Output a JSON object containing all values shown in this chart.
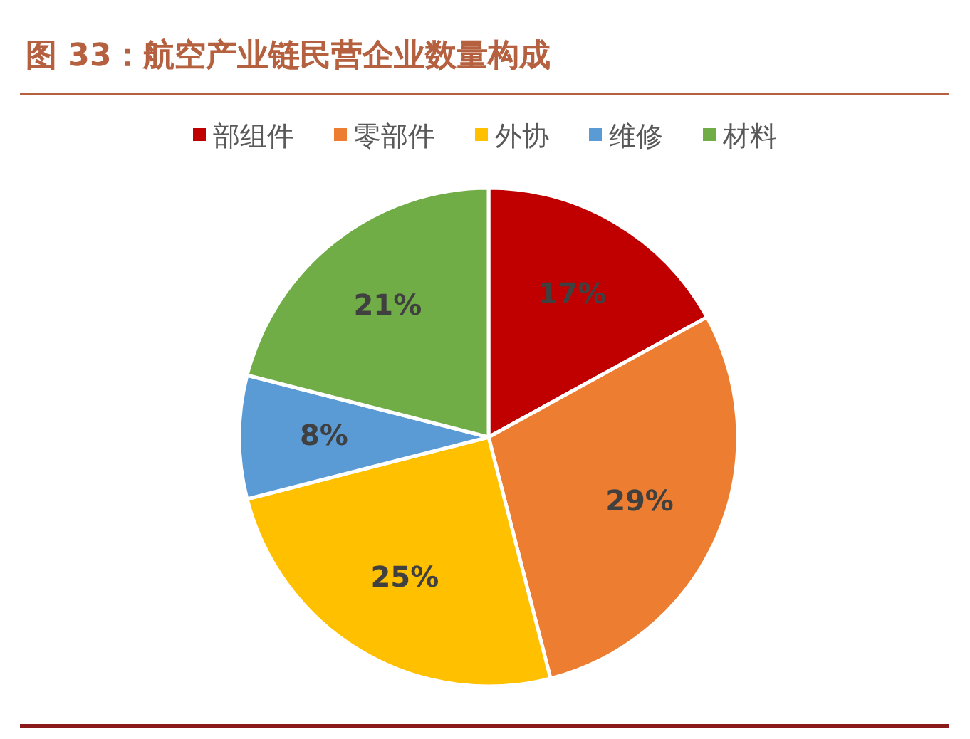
{
  "chart_data": {
    "type": "pie",
    "title": "图 33：航空产业链民营企业数量构成",
    "categories": [
      "部组件",
      "零部件",
      "外协",
      "维修",
      "材料"
    ],
    "values": [
      17,
      29,
      25,
      8,
      21
    ],
    "colors": [
      "#c00000",
      "#ed7d31",
      "#ffc000",
      "#5b9bd5",
      "#70ad47"
    ],
    "value_labels": [
      "17%",
      "29%",
      "25%",
      "8%",
      "21%"
    ],
    "legend": "top"
  }
}
